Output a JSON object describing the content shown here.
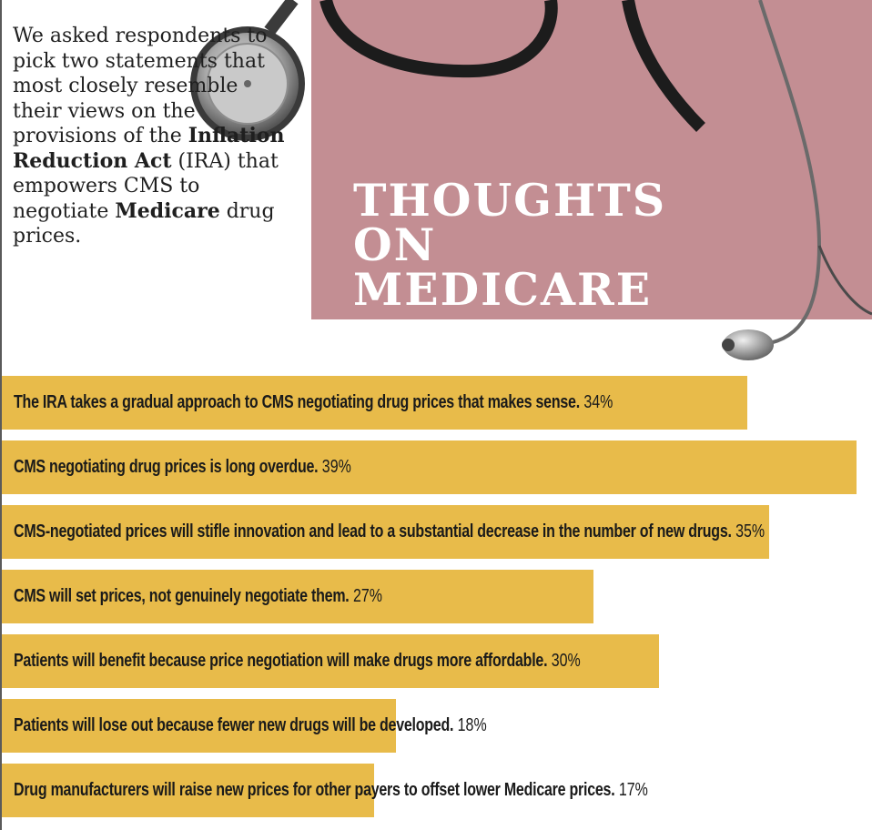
{
  "intro": {
    "text_1": "We asked respondents to pick two statements that most closely resemble their views on the provisions of the ",
    "bold_1": "Inflation Reduction Act",
    "text_2": " (IRA) that empowers CMS to negotiate ",
    "bold_2": "Medicare",
    "text_3": " drug prices."
  },
  "title": {
    "line1": "THOUGHTS",
    "line2": "ON",
    "line3": "MEDICARE"
  },
  "colors": {
    "panel": "#c38e93",
    "bar": "#e8bb4a",
    "title_text": "#ffffff"
  },
  "chart_data": {
    "type": "bar",
    "orientation": "horizontal",
    "categories": [
      "The IRA takes a gradual approach to CMS negotiating drug prices that makes sense.",
      "CMS negotiating drug prices is long overdue.",
      "CMS-negotiated prices will stifle innovation and lead to a substantial decrease in the number of new drugs.",
      "CMS will set prices, not genuinely negotiate them.",
      "Patients will benefit because price negotiation will make drugs more affordable.",
      "Patients will lose out because fewer new drugs will be developed.",
      "Drug manufacturers will raise new prices for other payers to offset lower Medicare prices."
    ],
    "values": [
      34,
      39,
      35,
      27,
      30,
      18,
      17
    ],
    "value_labels": [
      "34%",
      "39%",
      "35%",
      "27%",
      "30%",
      "18%",
      "17%"
    ],
    "unit": "%",
    "xlim": [
      0,
      39
    ],
    "grid": false,
    "legend": "none"
  }
}
